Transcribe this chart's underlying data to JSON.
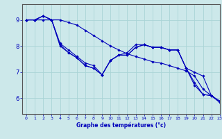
{
  "title": "Graphe des températures (°c)",
  "background_color": "#cce8ea",
  "grid_color": "#aad4d6",
  "line_color": "#0000bb",
  "axis_color": "#555555",
  "xlim": [
    -0.5,
    23
  ],
  "ylim": [
    5.4,
    9.6
  ],
  "yticks": [
    6,
    7,
    8,
    9
  ],
  "xticks": [
    0,
    1,
    2,
    3,
    4,
    5,
    6,
    7,
    8,
    9,
    10,
    11,
    12,
    13,
    14,
    15,
    16,
    17,
    18,
    19,
    20,
    21,
    22,
    23
  ],
  "series": [
    [
      9.0,
      9.0,
      9.0,
      9.0,
      9.0,
      8.9,
      8.8,
      8.6,
      8.4,
      8.2,
      8.0,
      7.85,
      7.7,
      7.6,
      7.5,
      7.4,
      7.35,
      7.25,
      7.15,
      7.05,
      6.85,
      6.35,
      6.1,
      5.85
    ],
    [
      9.0,
      9.0,
      9.15,
      9.0,
      8.1,
      7.85,
      7.6,
      7.35,
      7.25,
      6.9,
      7.45,
      7.65,
      7.75,
      8.05,
      8.05,
      7.95,
      7.95,
      7.85,
      7.85,
      7.15,
      7.0,
      6.85,
      6.1,
      5.85
    ],
    [
      9.0,
      9.0,
      9.15,
      9.0,
      8.0,
      7.75,
      7.55,
      7.25,
      7.15,
      6.9,
      7.45,
      7.65,
      7.65,
      7.95,
      8.05,
      7.95,
      7.95,
      7.85,
      7.85,
      7.15,
      6.6,
      6.15,
      6.1,
      5.85
    ],
    [
      9.0,
      9.0,
      9.15,
      9.0,
      8.05,
      7.75,
      7.55,
      7.25,
      7.15,
      6.9,
      7.45,
      7.65,
      7.65,
      7.95,
      8.05,
      7.95,
      7.95,
      7.85,
      7.85,
      7.15,
      6.5,
      6.15,
      6.1,
      5.9
    ]
  ]
}
